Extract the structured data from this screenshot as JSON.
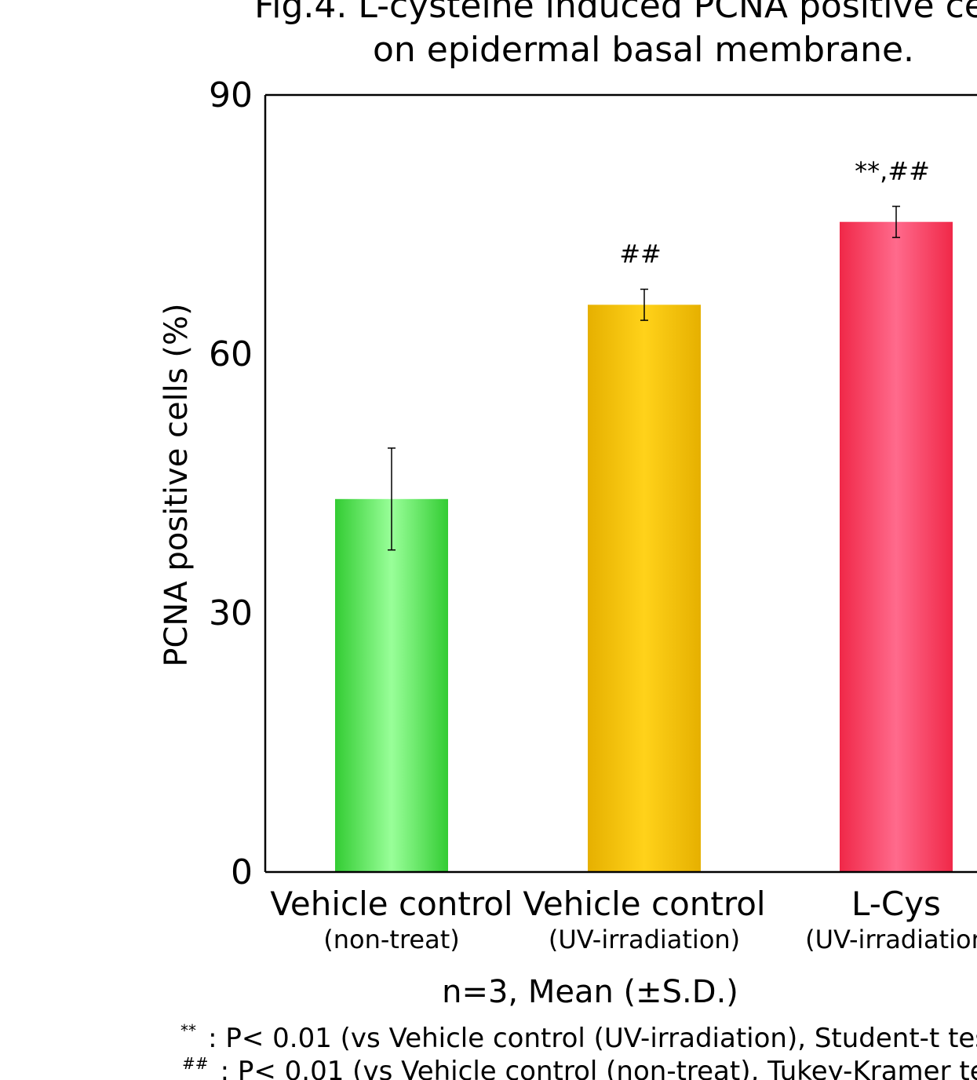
{
  "chart_data": {
    "type": "bar",
    "title": [
      "Fig.4.  L-cysteine induced PCNA positive ce",
      "on epidermal basal membrane."
    ],
    "ylabel": "PCNA positive cells (%)",
    "ylim": [
      0,
      90
    ],
    "yticks": [
      0,
      30,
      60,
      90
    ],
    "categories": [
      {
        "label": "Vehicle control",
        "sublabel": "(non-treat)"
      },
      {
        "label": "Vehicle control",
        "sublabel": "(UV-irradiation)"
      },
      {
        "label": "L-Cys",
        "sublabel": "(UV-irradiation"
      }
    ],
    "values": [
      43.2,
      65.7,
      75.3
    ],
    "errors": [
      5.9,
      1.8,
      1.8
    ],
    "significance": [
      "",
      "##",
      "**,##"
    ],
    "colors": [
      "#33cc33",
      "#e6b000",
      "#f02848"
    ],
    "highlights": [
      "#99ff99",
      "#ffd21a",
      "#ff6a8c"
    ]
  },
  "footer": {
    "summary": "n=3, Mean (±S.D.)",
    "notes": [
      {
        "mark": "**",
        "text": ": P< 0.01 (vs Vehicle control (UV-irradiation), Student-t tes"
      },
      {
        "mark": "##",
        "text": ": P< 0.01 (vs Vehicle control (non-treat), Tukey-Kramer tes"
      }
    ]
  }
}
